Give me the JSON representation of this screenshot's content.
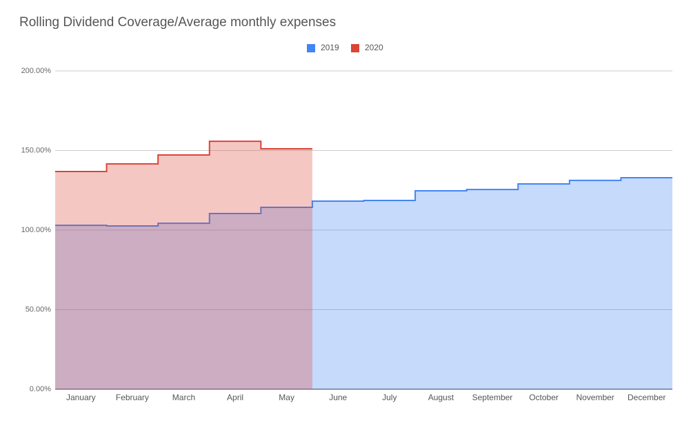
{
  "chart_data": {
    "type": "stepped-area",
    "title": "Rolling Dividend Coverage/Average monthly expenses",
    "categories": [
      "January",
      "February",
      "March",
      "April",
      "May",
      "June",
      "July",
      "August",
      "September",
      "October",
      "November",
      "December"
    ],
    "series": [
      {
        "name": "2019",
        "color": "#4285f4",
        "values": [
          103.0,
          102.6,
          104.3,
          110.4,
          114.3,
          118.2,
          118.6,
          124.7,
          125.5,
          129.0,
          131.2,
          132.9
        ]
      },
      {
        "name": "2020",
        "color": "#db4437",
        "values": [
          136.8,
          141.6,
          147.2,
          155.8,
          151.1,
          null,
          null,
          null,
          null,
          null,
          null,
          null
        ]
      }
    ],
    "ylim": [
      0,
      200
    ],
    "yticks": [
      {
        "value": 0,
        "label": "0.00%"
      },
      {
        "value": 50,
        "label": "50.00%"
      },
      {
        "value": 100,
        "label": "100.00%"
      },
      {
        "value": 150,
        "label": "150.00%"
      },
      {
        "value": 200,
        "label": "200.00%"
      }
    ],
    "grid": true,
    "legend": "top"
  }
}
